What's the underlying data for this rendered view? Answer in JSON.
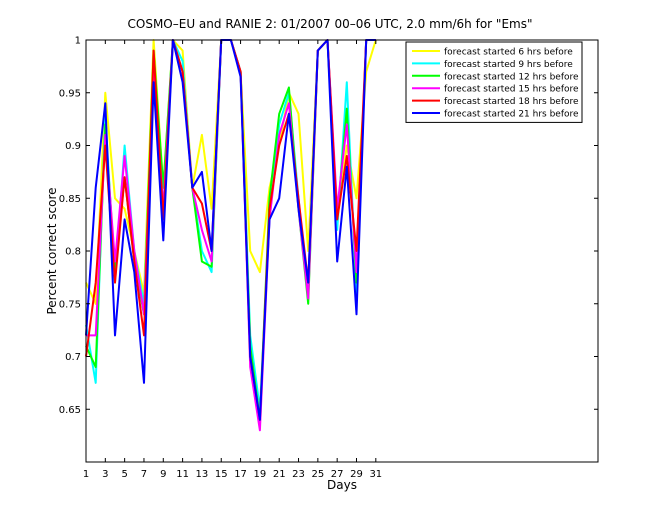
{
  "chart_data": {
    "type": "line",
    "title": "COSMO–EU and RANIE 2: 01/2007 00–06 UTC, 2.0 mm/6h for \"Ems\"",
    "xlabel": "Days",
    "ylabel": "Percent correct score",
    "xlim": [
      1,
      54
    ],
    "ylim": [
      0.6,
      1.0
    ],
    "xticks": [
      1,
      3,
      5,
      7,
      9,
      11,
      13,
      15,
      17,
      19,
      21,
      23,
      25,
      27,
      29,
      31
    ],
    "yticks": [
      0.65,
      0.7,
      0.75,
      0.8,
      0.85,
      0.9,
      0.95,
      1
    ],
    "ytick_labels": [
      "0.65",
      "0.7",
      "0.75",
      "0.8",
      "0.85",
      "0.9",
      "0.95",
      "1"
    ],
    "legend_position": "top-right",
    "grid": false,
    "x": [
      1,
      2,
      3,
      4,
      5,
      6,
      7,
      8,
      9,
      10,
      11,
      12,
      13,
      14,
      15,
      16,
      17,
      18,
      19,
      20,
      21,
      22,
      23,
      24,
      25,
      26,
      27,
      28,
      29,
      30,
      31
    ],
    "series": [
      {
        "name": "forecast started 6 hrs before",
        "color": "#ffff00",
        "values": [
          0.77,
          0.75,
          0.95,
          0.85,
          0.84,
          0.8,
          0.76,
          1.0,
          0.86,
          1.0,
          0.99,
          0.86,
          0.91,
          0.84,
          1.0,
          1.0,
          0.97,
          0.8,
          0.78,
          0.86,
          0.9,
          0.95,
          0.93,
          0.8,
          0.99,
          1.0,
          0.83,
          0.9,
          0.85,
          0.97,
          1.0
        ]
      },
      {
        "name": "forecast started 9 hrs before",
        "color": "#00ffff",
        "values": [
          0.73,
          0.675,
          0.93,
          0.77,
          0.9,
          0.8,
          0.75,
          0.97,
          0.84,
          1.0,
          0.98,
          0.86,
          0.8,
          0.78,
          1.0,
          1.0,
          0.97,
          0.72,
          0.65,
          0.83,
          0.92,
          0.95,
          0.85,
          0.76,
          0.99,
          1.0,
          0.82,
          0.96,
          0.76,
          1.0,
          1.0
        ]
      },
      {
        "name": "forecast started 12 hrs before",
        "color": "#00ff00",
        "values": [
          0.71,
          0.69,
          0.92,
          0.78,
          0.87,
          0.79,
          0.74,
          0.99,
          0.86,
          1.0,
          0.97,
          0.86,
          0.79,
          0.785,
          1.0,
          1.0,
          0.97,
          0.71,
          0.64,
          0.85,
          0.93,
          0.955,
          0.84,
          0.75,
          0.99,
          1.0,
          0.83,
          0.935,
          0.77,
          1.0,
          1.0
        ]
      },
      {
        "name": "forecast started 15 hrs before",
        "color": "#ff00ff",
        "values": [
          0.72,
          0.72,
          0.91,
          0.79,
          0.89,
          0.8,
          0.74,
          0.97,
          0.84,
          1.0,
          0.97,
          0.86,
          0.82,
          0.79,
          1.0,
          1.0,
          0.97,
          0.69,
          0.63,
          0.83,
          0.91,
          0.94,
          0.84,
          0.755,
          0.99,
          1.0,
          0.84,
          0.92,
          0.78,
          1.0,
          1.0
        ]
      },
      {
        "name": "forecast started 18 hrs before",
        "color": "#ff0000",
        "values": [
          0.7,
          0.77,
          0.9,
          0.77,
          0.87,
          0.79,
          0.72,
          0.99,
          0.83,
          1.0,
          0.97,
          0.86,
          0.845,
          0.8,
          1.0,
          1.0,
          0.97,
          0.7,
          0.64,
          0.84,
          0.9,
          0.93,
          0.85,
          0.77,
          0.99,
          1.0,
          0.83,
          0.89,
          0.8,
          1.0,
          1.0
        ]
      },
      {
        "name": "forecast started 21 hrs before",
        "color": "#0000ff",
        "values": [
          0.72,
          0.86,
          0.94,
          0.72,
          0.83,
          0.78,
          0.675,
          0.96,
          0.81,
          1.0,
          0.96,
          0.86,
          0.875,
          0.8,
          1.0,
          1.0,
          0.965,
          0.7,
          0.64,
          0.83,
          0.85,
          0.93,
          0.84,
          0.77,
          0.99,
          1.0,
          0.79,
          0.88,
          0.74,
          1.0,
          1.0
        ]
      }
    ]
  }
}
